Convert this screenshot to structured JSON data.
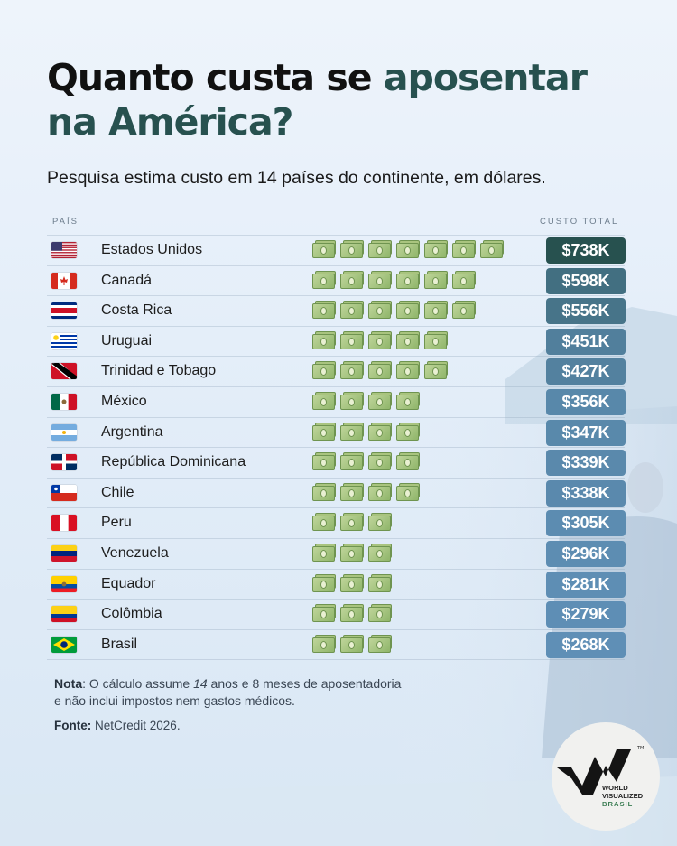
{
  "title": {
    "part1": "Quanto custa se ",
    "accent": "aposentar",
    "part2": "na América?"
  },
  "subtitle": "Pesquisa estima custo em 14 países do continente, em dólares.",
  "column_headers": {
    "country": "PAÍS",
    "total": "CUSTO TOTAL"
  },
  "chart_data": {
    "type": "table",
    "unit": "USD",
    "rows": [
      {
        "country": "Estados Unidos",
        "flag": "us-flag",
        "value": 738,
        "label": "$738K",
        "bills": 7
      },
      {
        "country": "Canadá",
        "flag": "canada-flag",
        "value": 598,
        "label": "$598K",
        "bills": 6
      },
      {
        "country": "Costa Rica",
        "flag": "costa-rica-flag",
        "value": 556,
        "label": "$556K",
        "bills": 6
      },
      {
        "country": "Uruguai",
        "flag": "uruguay-flag",
        "value": 451,
        "label": "$451K",
        "bills": 5
      },
      {
        "country": "Trinidad e Tobago",
        "flag": "trinidad-flag",
        "value": 427,
        "label": "$427K",
        "bills": 5
      },
      {
        "country": "México",
        "flag": "mexico-flag",
        "value": 356,
        "label": "$356K",
        "bills": 4
      },
      {
        "country": "Argentina",
        "flag": "argentina-flag",
        "value": 347,
        "label": "$347K",
        "bills": 4
      },
      {
        "country": "República Dominicana",
        "flag": "dominican-flag",
        "value": 339,
        "label": "$339K",
        "bills": 4
      },
      {
        "country": "Chile",
        "flag": "chile-flag",
        "value": 338,
        "label": "$338K",
        "bills": 4
      },
      {
        "country": "Peru",
        "flag": "peru-flag",
        "value": 305,
        "label": "$305K",
        "bills": 3
      },
      {
        "country": "Venezuela",
        "flag": "venezuela-flag",
        "value": 296,
        "label": "$296K",
        "bills": 3
      },
      {
        "country": "Equador",
        "flag": "ecuador-flag",
        "value": 281,
        "label": "$281K",
        "bills": 3
      },
      {
        "country": "Colômbia",
        "flag": "colombia-flag",
        "value": 279,
        "label": "$279K",
        "bills": 3
      },
      {
        "country": "Brasil",
        "flag": "brazil-flag",
        "value": 268,
        "label": "$268K",
        "bills": 3
      }
    ]
  },
  "note": {
    "label": "Nota",
    "text_a": ": O cálculo assume ",
    "years": "14",
    "text_b": " anos e 8 meses de aposentadoria",
    "line2": "e não inclui impostos nem gastos médicos."
  },
  "source": {
    "label": "Fonte:",
    "text": "NetCredit 2026."
  },
  "logo": {
    "line1": "WORLD",
    "line2": "VISUALIZED",
    "line3": "BRASIL",
    "tm": "TM"
  },
  "colors": {
    "accent": "#27514f",
    "badge_dark": "#27514f",
    "badge_light": "#5f8fb6"
  }
}
